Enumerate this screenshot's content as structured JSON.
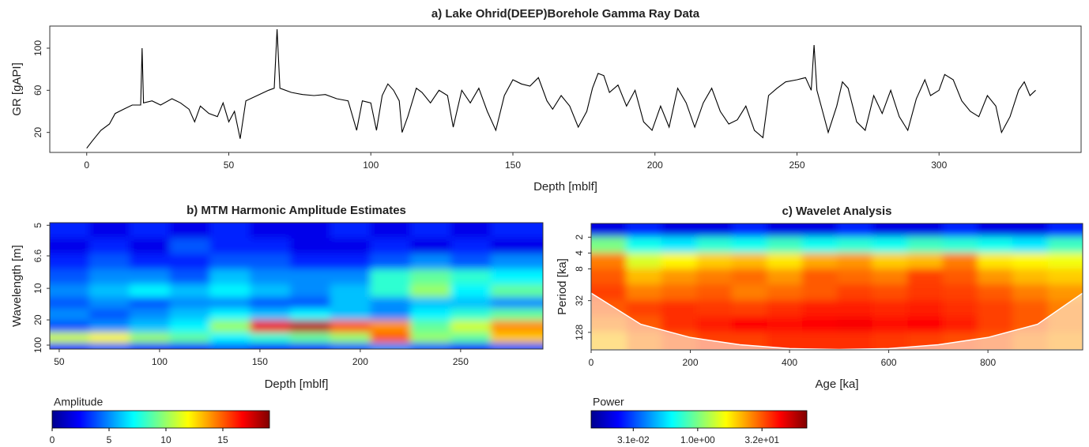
{
  "chart_data": [
    {
      "type": "line",
      "title": "a) Lake Ohrid(DEEP)Borehole Gamma Ray Data",
      "xlabel": "Depth [mblf]",
      "ylabel": "GR [gAPI]",
      "color": "#000000",
      "x": [
        0,
        2,
        5,
        8,
        10,
        13,
        16,
        19,
        19.5,
        20,
        23,
        26,
        30,
        33,
        36,
        38,
        40,
        43,
        46,
        48,
        50,
        52,
        54,
        56,
        60,
        64,
        66,
        67,
        68,
        72,
        76,
        80,
        84,
        88,
        92,
        95,
        97,
        100,
        102,
        104,
        106,
        108,
        110,
        111,
        113,
        116,
        118,
        121,
        124,
        127,
        129,
        132,
        135,
        138,
        141,
        144,
        147,
        150,
        153,
        156,
        159,
        162,
        164,
        167,
        170,
        173,
        176,
        178,
        180,
        182,
        184,
        187,
        190,
        193,
        196,
        199,
        202,
        205,
        208,
        211,
        214,
        217,
        220,
        223,
        226,
        229,
        232,
        235,
        238,
        240,
        243,
        246,
        250,
        253,
        255,
        256,
        257,
        259,
        261,
        264,
        266,
        268,
        271,
        274,
        277,
        280,
        283,
        286,
        289,
        292,
        295,
        297,
        300,
        302,
        305,
        308,
        311,
        314,
        317,
        320,
        322,
        325,
        328,
        330,
        332,
        334
      ],
      "y": [
        5,
        12,
        22,
        28,
        38,
        42,
        46,
        46,
        100,
        48,
        50,
        46,
        52,
        48,
        42,
        30,
        45,
        38,
        35,
        48,
        30,
        40,
        14,
        50,
        55,
        60,
        62,
        118,
        62,
        58,
        56,
        55,
        56,
        52,
        50,
        22,
        50,
        48,
        22,
        55,
        66,
        60,
        50,
        20,
        35,
        62,
        58,
        48,
        60,
        55,
        25,
        60,
        48,
        62,
        40,
        22,
        55,
        70,
        66,
        64,
        72,
        50,
        42,
        55,
        45,
        25,
        40,
        62,
        76,
        74,
        58,
        65,
        45,
        60,
        30,
        22,
        45,
        25,
        62,
        48,
        25,
        48,
        62,
        40,
        28,
        32,
        45,
        22,
        15,
        55,
        62,
        68,
        70,
        72,
        60,
        103,
        60,
        40,
        20,
        45,
        68,
        62,
        30,
        22,
        55,
        38,
        60,
        35,
        22,
        52,
        70,
        55,
        60,
        75,
        70,
        50,
        40,
        35,
        55,
        45,
        20,
        35,
        60,
        68,
        55,
        60
      ],
      "xlim": [
        -13,
        350
      ],
      "ylim": [
        1,
        121
      ],
      "xticks": [
        0,
        50,
        100,
        150,
        200,
        250,
        300
      ],
      "yticks": [
        20,
        60,
        100
      ]
    },
    {
      "type": "heatmap",
      "title": "b) MTM Harmonic Amplitude Estimates",
      "xlabel": "Depth [mblf]",
      "ylabel": "Wavelength [m]",
      "yscale": "reciprocal",
      "colormap": "jet",
      "xlim": [
        45.3,
        291
      ],
      "ylim": [
        267,
        4.9
      ],
      "xticks": [
        50,
        100,
        150,
        200,
        250
      ],
      "yticks": [
        5,
        6.6,
        10,
        20,
        100
      ],
      "x": [
        55,
        75,
        95,
        115,
        135,
        155,
        175,
        195,
        215,
        235,
        255,
        275
      ],
      "y": [
        5.2,
        6,
        7,
        8.5,
        10.5,
        13,
        17,
        25,
        50,
        150
      ],
      "z": [
        [
          3,
          2,
          3,
          2,
          3,
          2,
          2,
          3,
          2,
          3,
          2,
          3
        ],
        [
          2,
          3,
          2,
          4,
          3,
          3,
          2,
          2,
          3,
          2,
          3,
          2
        ],
        [
          3,
          4,
          3,
          3,
          4,
          4,
          3,
          3,
          4,
          5,
          4,
          5
        ],
        [
          4,
          5,
          5,
          4,
          6,
          5,
          5,
          5,
          8,
          9,
          8,
          7
        ],
        [
          5,
          6,
          7,
          6,
          7,
          6,
          5,
          6,
          8,
          10,
          7,
          9
        ],
        [
          4,
          5,
          4,
          5,
          5,
          4,
          4,
          6,
          5,
          6,
          6,
          5
        ],
        [
          5,
          4,
          5,
          6,
          7,
          6,
          7,
          6,
          5,
          7,
          8,
          9
        ],
        [
          4,
          5,
          6,
          7,
          10,
          17,
          18,
          15,
          14,
          9,
          11,
          14
        ],
        [
          11,
          12,
          10,
          9,
          7,
          8,
          9,
          10,
          15,
          10,
          9,
          13
        ],
        [
          3,
          4,
          3,
          3,
          4,
          3,
          3,
          4,
          5,
          4,
          3,
          4
        ]
      ],
      "colorbar": {
        "label": "Amplitude",
        "lim": [
          0,
          19.1
        ],
        "ticks": [
          0,
          5,
          10,
          15
        ],
        "scale": "linear"
      }
    },
    {
      "type": "heatmap",
      "title": "c) Wavelet Analysis",
      "xlabel": "Age [ka]",
      "ylabel": "Period [ka]",
      "yscale": "log",
      "colormap": "jet",
      "xlim": [
        0,
        991
      ],
      "ylim": [
        275,
        1.1
      ],
      "xticks": [
        0,
        200,
        400,
        600,
        800
      ],
      "yticks": [
        2,
        4,
        8,
        32,
        128
      ],
      "x": [
        35,
        106,
        177,
        248,
        319,
        390,
        460,
        531,
        602,
        673,
        744,
        814,
        885,
        956
      ],
      "y": [
        1.4,
        2.8,
        5.6,
        11,
        22,
        45,
        90,
        180
      ],
      "z": [
        [
          0.01,
          0.02,
          0.01,
          0.01,
          0.02,
          0.01,
          0.01,
          0.02,
          0.01,
          0.01,
          0.02,
          0.01,
          0.01,
          0.02
        ],
        [
          1,
          0.3,
          0.2,
          0.4,
          0.3,
          0.5,
          0.3,
          0.4,
          0.3,
          0.5,
          0.4,
          0.3,
          0.2,
          0.5
        ],
        [
          20,
          3,
          5,
          8,
          10,
          6,
          12,
          15,
          8,
          10,
          20,
          6,
          5,
          4
        ],
        [
          30,
          10,
          15,
          20,
          25,
          15,
          30,
          25,
          20,
          40,
          30,
          15,
          10,
          8
        ],
        [
          40,
          20,
          25,
          30,
          20,
          25,
          30,
          40,
          35,
          45,
          40,
          30,
          20,
          15
        ],
        [
          30,
          40,
          50,
          45,
          40,
          50,
          60,
          60,
          55,
          60,
          50,
          40,
          30,
          20
        ],
        [
          20,
          30,
          50,
          60,
          80,
          70,
          80,
          90,
          70,
          80,
          60,
          40,
          30,
          20
        ],
        [
          10,
          20,
          30,
          40,
          40,
          50,
          50,
          50,
          45,
          40,
          35,
          30,
          20,
          15
        ]
      ],
      "coi": {
        "x": [
          0,
          100,
          200,
          300,
          400,
          500,
          600,
          700,
          800,
          900,
          991
        ],
        "period": [
          23,
          90,
          160,
          220,
          260,
          270,
          260,
          220,
          160,
          90,
          23
        ]
      },
      "colorbar": {
        "label": "Power",
        "lim": [
          0.0032,
          360
        ],
        "scale": "log",
        "ticks": [
          {
            "value": 0.031,
            "label": "3.1e-02"
          },
          {
            "value": 1,
            "label": "1.0e+00"
          },
          {
            "value": 32,
            "label": "3.2e+01"
          }
        ]
      }
    }
  ]
}
